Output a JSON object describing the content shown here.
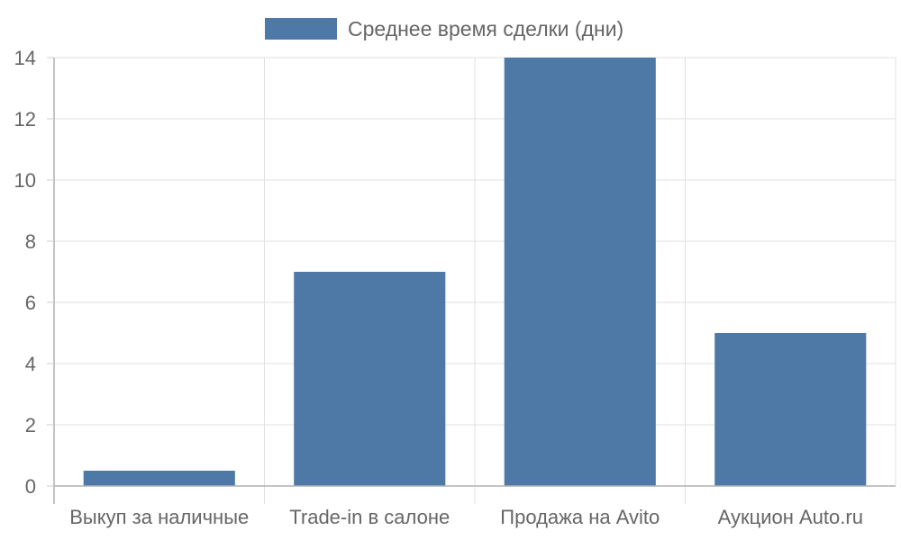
{
  "chart_data": {
    "type": "bar",
    "categories": [
      "Выкуп за наличные",
      "Trade-in в салоне",
      "Продажа на Avito",
      "Аукцион Auto.ru"
    ],
    "series": [
      {
        "name": "Среднее время сделки (дни)",
        "values": [
          0.5,
          7,
          14,
          5
        ],
        "color": "#4e79a7"
      }
    ],
    "ylim": [
      0,
      14
    ],
    "yticks": [
      0,
      2,
      4,
      6,
      8,
      10,
      12,
      14
    ],
    "grid": true,
    "legend_position": "top-center"
  }
}
